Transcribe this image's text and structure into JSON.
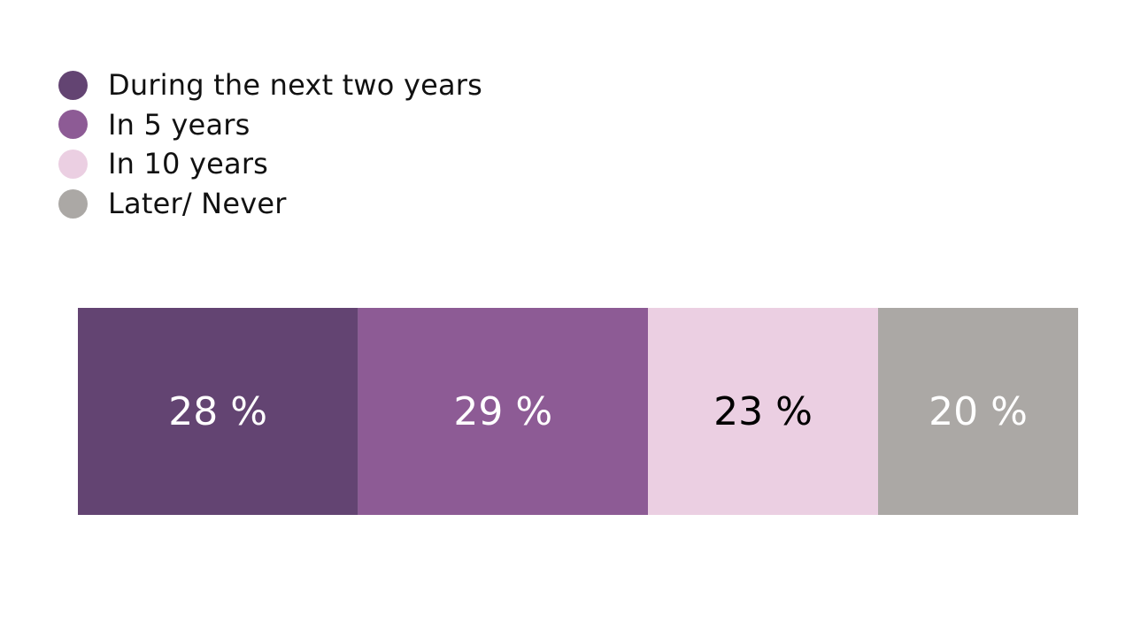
{
  "chart_data": {
    "type": "bar",
    "orientation": "horizontal-stacked",
    "unit": "%",
    "categories": [
      ""
    ],
    "series": [
      {
        "name": "During the next two years",
        "values": [
          28
        ],
        "color": "#634472",
        "label": "28 %",
        "label_color": "#ffffff"
      },
      {
        "name": "In 5 years",
        "values": [
          29
        ],
        "color": "#8d5b95",
        "label": "29 %",
        "label_color": "#ffffff"
      },
      {
        "name": "In 10 years",
        "values": [
          23
        ],
        "color": "#ebcfe2",
        "label": "23 %",
        "label_color": "#000000"
      },
      {
        "name": "Later/ Never",
        "values": [
          20
        ],
        "color": "#aba8a5",
        "label": "20 %",
        "label_color": "#ffffff"
      }
    ],
    "title": "",
    "xlabel": "",
    "ylabel": "",
    "xlim": [
      0,
      100
    ],
    "grid": false,
    "legend_position": "top-left"
  }
}
